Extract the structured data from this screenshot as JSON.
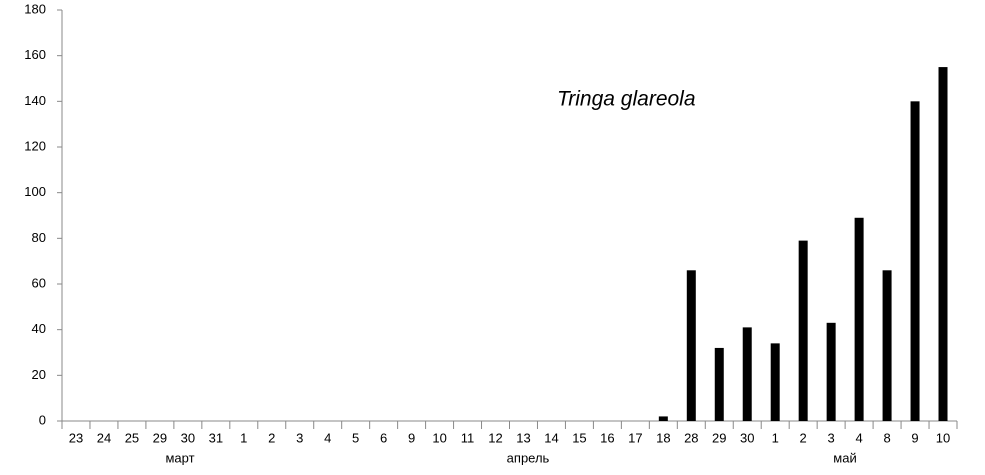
{
  "chart_data": {
    "type": "bar",
    "annotation": "Tringa glareola",
    "categories": [
      "23",
      "24",
      "25",
      "29",
      "30",
      "31",
      "1",
      "2",
      "3",
      "4",
      "5",
      "6",
      "9",
      "10",
      "11",
      "12",
      "13",
      "14",
      "15",
      "16",
      "17",
      "18",
      "28",
      "29",
      "30",
      "1",
      "2",
      "3",
      "4",
      "8",
      "9",
      "10"
    ],
    "values": [
      0,
      0,
      0,
      0,
      0,
      0,
      0,
      0,
      0,
      0,
      0,
      0,
      0,
      0,
      0,
      0,
      0,
      0,
      0,
      0,
      0,
      2,
      66,
      32,
      41,
      34,
      79,
      43,
      89,
      66,
      140,
      155
    ],
    "month_labels": [
      "март",
      "апрель",
      "май"
    ],
    "color": "#000000",
    "ylim": [
      0,
      180
    ],
    "yticks": [
      0,
      20,
      40,
      60,
      80,
      100,
      120,
      140,
      160,
      180
    ],
    "grid": false
  }
}
